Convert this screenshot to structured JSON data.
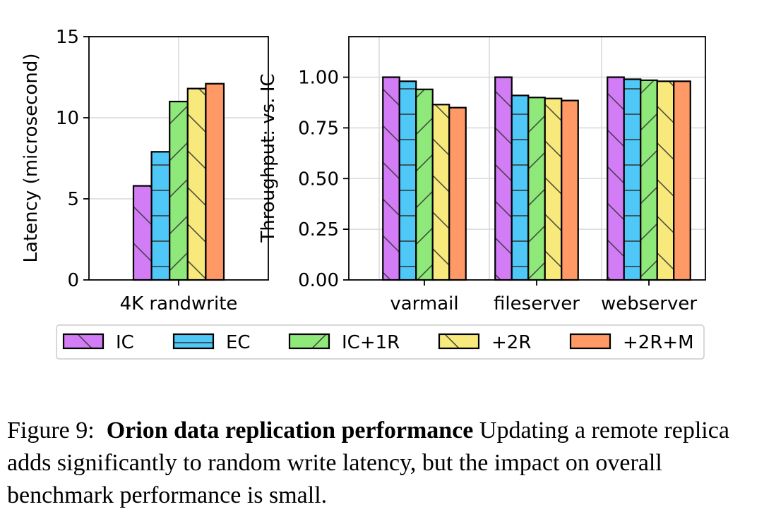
{
  "colors": {
    "IC": "#d27cf5",
    "EC": "#4fc8f7",
    "IC+1R": "#8fe87a",
    "+2R": "#f8e97c",
    "+2R+M": "#ff9966"
  },
  "legend": [
    "IC",
    "EC",
    "IC+1R",
    "+2R",
    "+2R+M"
  ],
  "chart_data": [
    {
      "type": "bar",
      "categories": [
        "4K randwrite"
      ],
      "series": [
        {
          "name": "IC",
          "values": [
            5.8
          ]
        },
        {
          "name": "EC",
          "values": [
            7.9
          ]
        },
        {
          "name": "IC+1R",
          "values": [
            11.0
          ]
        },
        {
          "name": "+2R",
          "values": [
            11.8
          ]
        },
        {
          "name": "+2R+M",
          "values": [
            12.1
          ]
        }
      ],
      "ylabel": "Latency (microsecond)",
      "ylim": [
        0,
        15
      ],
      "yticks": [
        "0",
        "5",
        "10",
        "15"
      ],
      "grid": true
    },
    {
      "type": "bar",
      "categories": [
        "varmail",
        "fileserver",
        "webserver"
      ],
      "series": [
        {
          "name": "IC",
          "values": [
            1.0,
            1.0,
            1.0
          ]
        },
        {
          "name": "EC",
          "values": [
            0.98,
            0.91,
            0.99
          ]
        },
        {
          "name": "IC+1R",
          "values": [
            0.94,
            0.9,
            0.985
          ]
        },
        {
          "name": "+2R",
          "values": [
            0.865,
            0.895,
            0.98
          ]
        },
        {
          "name": "+2R+M",
          "values": [
            0.85,
            0.885,
            0.98
          ]
        }
      ],
      "ylabel": "Throughput: vs. IC",
      "ylim": [
        0,
        1.2
      ],
      "yticks": [
        "0.00",
        "0.25",
        "0.50",
        "0.75",
        "1.00"
      ],
      "grid": true
    }
  ],
  "caption": {
    "prefix": "Figure 9:",
    "bold": "Orion data replication performance",
    "rest": "Updating a remote replica adds significantly to random write latency, but the impact on overall benchmark performance is small."
  }
}
